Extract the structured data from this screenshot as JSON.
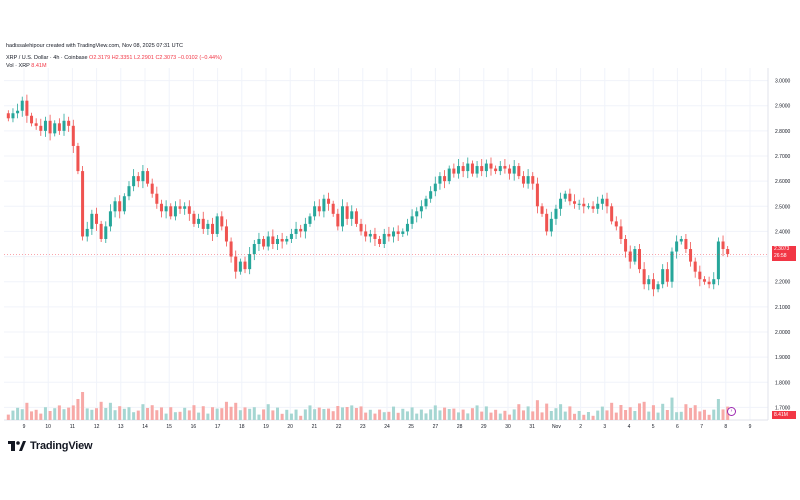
{
  "header": {
    "author_line": "hadissalehipour created with TradingView.com, Nov 08, 2025 07:31 UTC",
    "symbol": "XRP / U.S. Dollar · 4h · Coinbase",
    "open": "O2.3179",
    "high": "H2.3351",
    "low": "L2.2901",
    "close": "C2.3073",
    "change": "−0.0102 (−0.44%)",
    "vol_label": "Vol · XRP",
    "vol_value": "8.41M"
  },
  "price_tag": {
    "price": "2.3073",
    "countdown": "26:58"
  },
  "vol_tag": "8.41M",
  "logo_text": "TradingView",
  "colors": {
    "up": "#26a69a",
    "down": "#ef5350",
    "up_vol": "#a5d6d2",
    "down_vol": "#f7a9a7",
    "grid": "#f0f3fa",
    "last_price": "#f23645"
  },
  "chart_data": {
    "type": "candlestick",
    "ylim": [
      1.65,
      3.05
    ],
    "y_ticks": [
      "3.0000",
      "2.9000",
      "2.8000",
      "2.7000",
      "2.6000",
      "2.5000",
      "2.4000",
      "2.3000",
      "2.2000",
      "2.1000",
      "2.0000",
      "1.9000",
      "1.8000",
      "1.7000"
    ],
    "x_ticks": [
      "9",
      "10",
      "11",
      "12",
      "13",
      "14",
      "15",
      "16",
      "17",
      "18",
      "19",
      "20",
      "21",
      "22",
      "23",
      "24",
      "25",
      "27",
      "28",
      "29",
      "30",
      "31",
      "Nov",
      "2",
      "3",
      "4",
      "5",
      "6",
      "7",
      "8",
      "9"
    ],
    "closes": [
      2.85,
      2.87,
      2.88,
      2.92,
      2.86,
      2.83,
      2.82,
      2.8,
      2.84,
      2.79,
      2.83,
      2.8,
      2.84,
      2.82,
      2.74,
      2.64,
      2.38,
      2.41,
      2.47,
      2.43,
      2.37,
      2.42,
      2.48,
      2.52,
      2.48,
      2.54,
      2.58,
      2.62,
      2.6,
      2.64,
      2.59,
      2.55,
      2.51,
      2.48,
      2.5,
      2.46,
      2.5,
      2.49,
      2.5,
      2.47,
      2.43,
      2.45,
      2.41,
      2.43,
      2.39,
      2.46,
      2.42,
      2.36,
      2.3,
      2.24,
      2.28,
      2.25,
      2.31,
      2.35,
      2.37,
      2.34,
      2.38,
      2.35,
      2.37,
      2.36,
      2.37,
      2.39,
      2.41,
      2.4,
      2.43,
      2.46,
      2.5,
      2.48,
      2.53,
      2.51,
      2.47,
      2.42,
      2.5,
      2.45,
      2.48,
      2.43,
      2.4,
      2.38,
      2.39,
      2.37,
      2.35,
      2.39,
      2.38,
      2.4,
      2.39,
      2.4,
      2.43,
      2.46,
      2.48,
      2.5,
      2.53,
      2.56,
      2.59,
      2.62,
      2.6,
      2.65,
      2.63,
      2.66,
      2.64,
      2.67,
      2.63,
      2.66,
      2.64,
      2.67,
      2.65,
      2.64,
      2.66,
      2.65,
      2.63,
      2.66,
      2.62,
      2.59,
      2.62,
      2.59,
      2.5,
      2.47,
      2.4,
      2.45,
      2.49,
      2.53,
      2.55,
      2.52,
      2.51,
      2.51,
      2.5,
      2.5,
      2.49,
      2.51,
      2.53,
      2.5,
      2.44,
      2.42,
      2.37,
      2.32,
      2.28,
      2.33,
      2.25,
      2.19,
      2.21,
      2.17,
      2.19,
      2.25,
      2.2,
      2.32,
      2.36,
      2.37,
      2.33,
      2.28,
      2.24,
      2.21,
      2.2,
      2.19,
      2.21,
      2.36,
      2.33,
      2.31
    ]
  }
}
